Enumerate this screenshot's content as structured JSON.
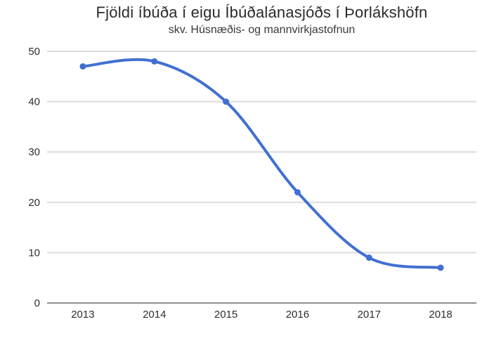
{
  "chart_data": {
    "type": "line",
    "title": "Fjöldi íbúða í eigu Íbúðalánasjóðs í Þorlákshöfn",
    "subtitle": "skv. Húsnæðis- og mannvirkjastofnun",
    "categories": [
      "2013",
      "2014",
      "2015",
      "2016",
      "2017",
      "2018"
    ],
    "values": [
      47,
      48,
      40,
      22,
      9,
      7
    ],
    "xlabel": "",
    "ylabel": "",
    "ylim": [
      0,
      50
    ],
    "yticks": [
      0,
      10,
      20,
      30,
      40,
      50
    ],
    "grid": true,
    "legend": "none",
    "curve": "smooth",
    "colors": {
      "line": "#4170d0",
      "point": "#4170d0",
      "gridline": "#dcdcdc",
      "axis_line": "#8c8c8c",
      "title_text": "#2b2b2b",
      "tick_text": "#2e2e2e",
      "background": "#ffffff"
    }
  }
}
